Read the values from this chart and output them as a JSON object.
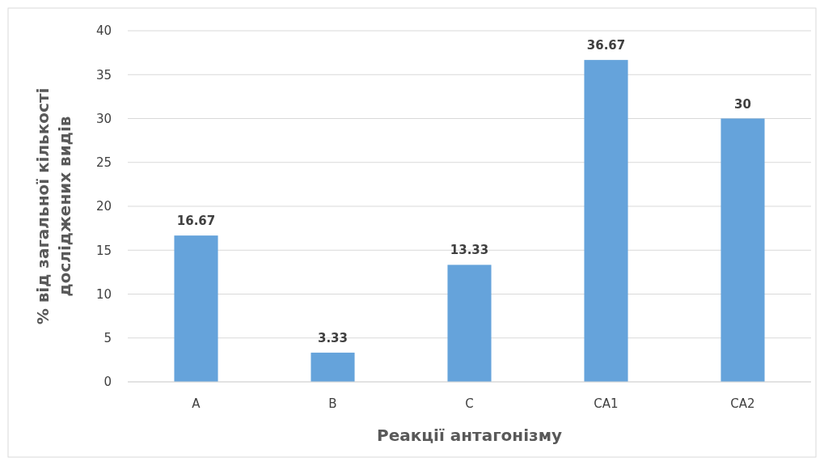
{
  "chart_data": {
    "type": "bar",
    "xlabel": "Реакції антагонізму",
    "ylabel": "% від загальної кількості\nдосліджених видів",
    "categories": [
      "A",
      "B",
      "C",
      "CA1",
      "CA2"
    ],
    "values": [
      16.67,
      3.33,
      13.33,
      36.67,
      30
    ],
    "color": "#65a3db",
    "ylim": [
      0,
      40
    ],
    "yticks": [
      0,
      5,
      10,
      15,
      20,
      25,
      30,
      35,
      40
    ],
    "grid": "y",
    "data_labels": true
  }
}
